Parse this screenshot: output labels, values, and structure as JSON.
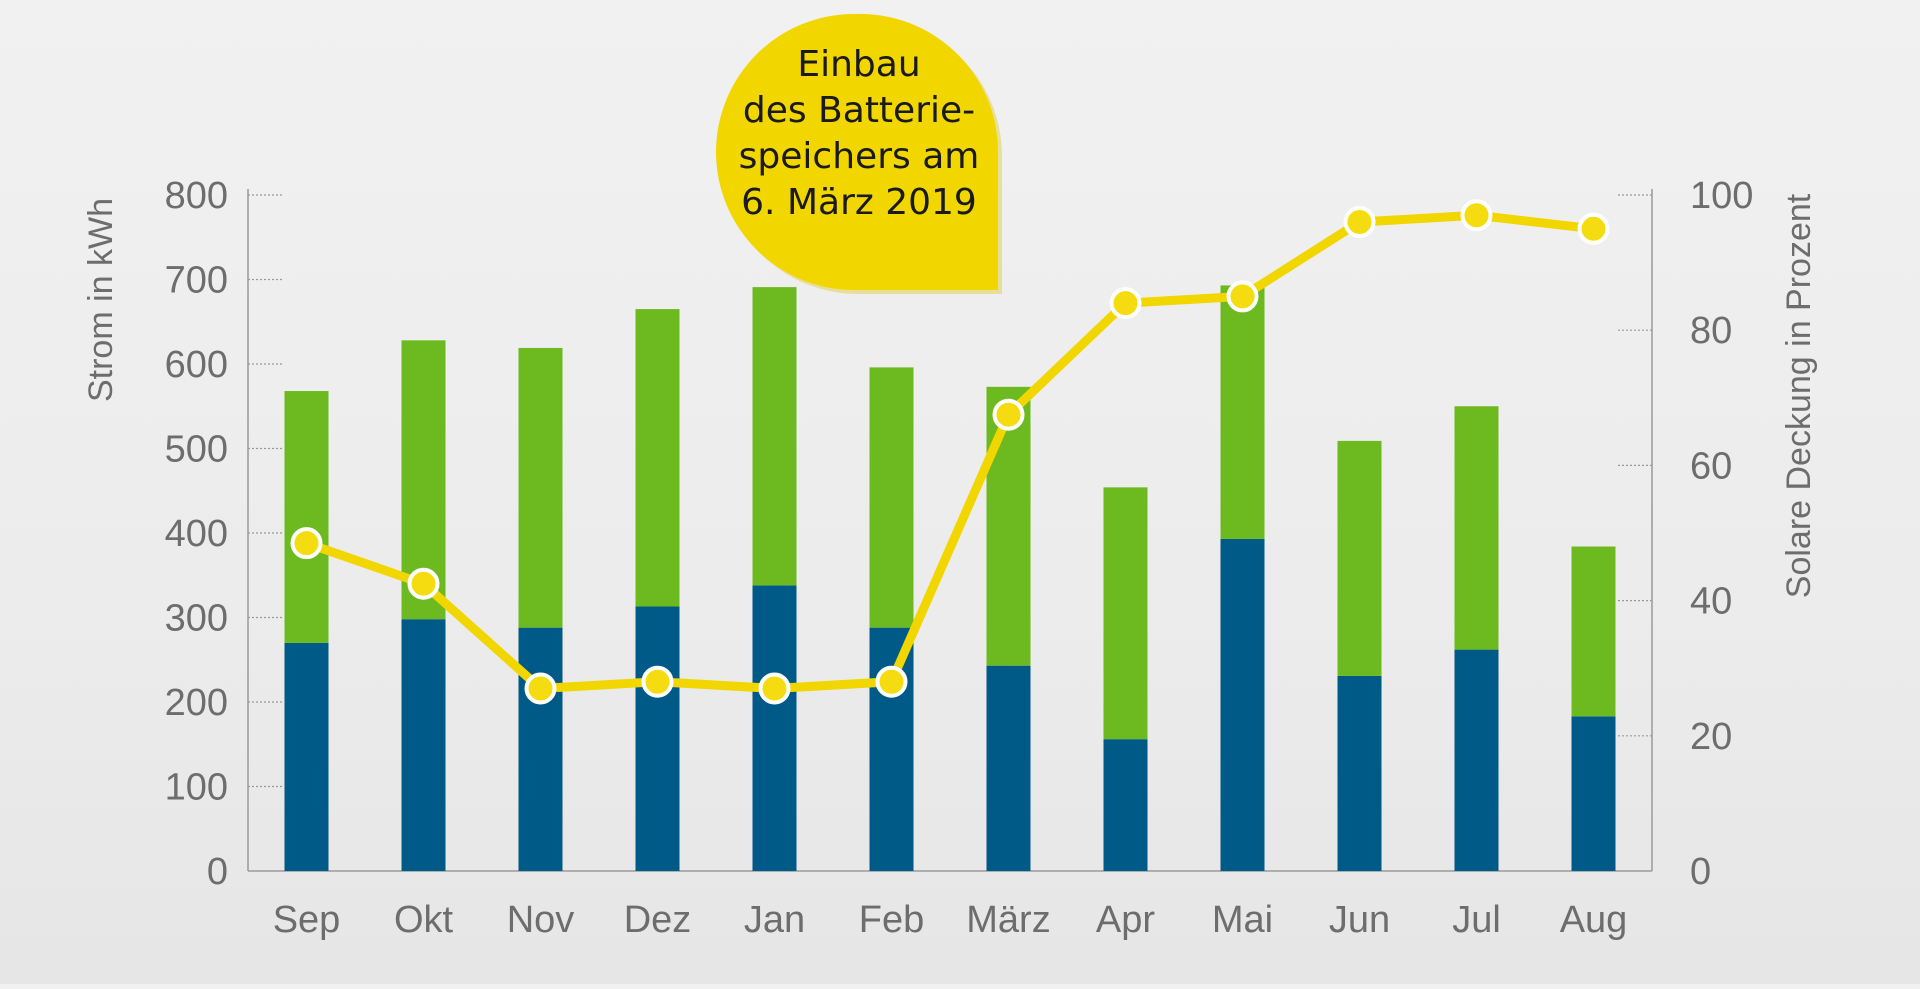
{
  "chart_data": {
    "type": "bar",
    "stacked": true,
    "categories": [
      "Sep",
      "Okt",
      "Nov",
      "Dez",
      "Jan",
      "Feb",
      "März",
      "Apr",
      "Mai",
      "Jun",
      "Jul",
      "Aug"
    ],
    "series": [
      {
        "name": "Strom (dunkelblau)",
        "color": "#005a87",
        "values": [
          270,
          298,
          288,
          313,
          338,
          288,
          243,
          156,
          393,
          231,
          262,
          183
        ]
      },
      {
        "name": "Strom (grün)",
        "color": "#6cba1f",
        "values": [
          298,
          330,
          331,
          352,
          353,
          308,
          330,
          298,
          300,
          278,
          288,
          201
        ]
      }
    ],
    "line_series": {
      "name": "Solare Deckung",
      "color": "#f2d600",
      "marker_fill": "#f5dc10",
      "marker_stroke": "#ffffff",
      "axis": "right",
      "values": [
        48.5,
        42.5,
        27,
        28,
        27,
        28,
        67.5,
        84,
        85,
        96,
        97,
        95
      ]
    },
    "y_axis_left": {
      "label": "Strom in kWh",
      "ylim": [
        0,
        800
      ],
      "ticks": [
        0,
        100,
        200,
        300,
        400,
        500,
        600,
        700,
        800
      ],
      "tick_labels": [
        "0",
        "100",
        "200",
        "300",
        "400",
        "500",
        "600",
        "700",
        "800"
      ]
    },
    "y_axis_right": {
      "label": "Solare Deckung in Prozent",
      "ylim": [
        0,
        100
      ],
      "ticks": [
        0,
        20,
        40,
        60,
        80,
        100
      ],
      "tick_labels": [
        "0",
        "20",
        "40",
        "60",
        "80",
        "100"
      ]
    },
    "annotation": {
      "lines": [
        "Einbau",
        "des Batterie-",
        "speichers am",
        "6. März 2019"
      ],
      "color": "#f2d600"
    },
    "grid": false,
    "legend": "none"
  }
}
